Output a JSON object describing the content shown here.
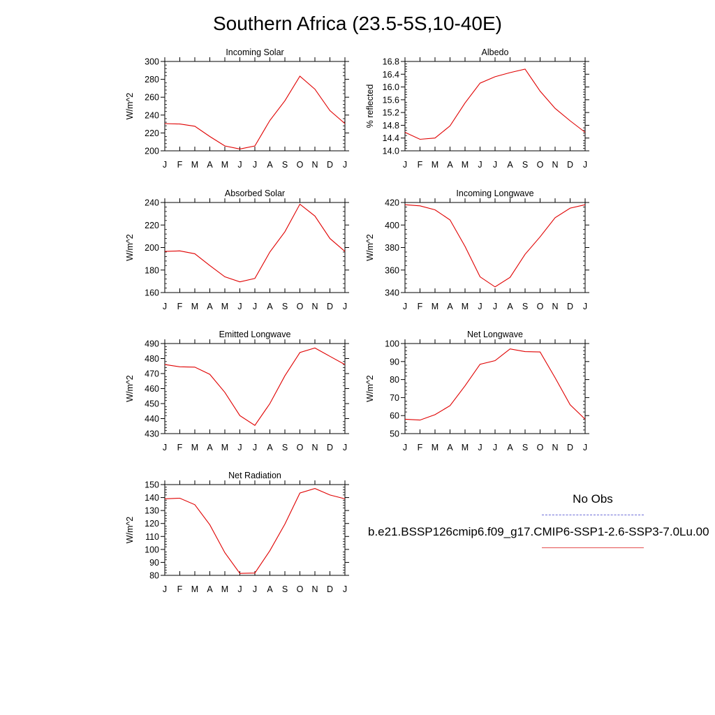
{
  "page": {
    "title": "Southern Africa (23.5-5S,10-40E)"
  },
  "legend": {
    "obs_label": "No Obs",
    "model_label": "b.e21.BSSP126cmip6.f09_g17.CMIP6-SSP1-2.6-SSP3-7.0Lu.00",
    "obs_color": "#6b6bd8",
    "model_color": "#e45050"
  },
  "colors": {
    "line": "#e00000",
    "axis": "#000000"
  },
  "chart_data": [
    {
      "type": "line",
      "title": "Incoming Solar",
      "ylabel": "W/m^2",
      "x": [
        "J",
        "F",
        "M",
        "A",
        "M",
        "J",
        "J",
        "A",
        "S",
        "O",
        "N",
        "D",
        "J"
      ],
      "series": [
        {
          "values": [
            230.5,
            230.0,
            227.5,
            216.0,
            205.5,
            202.0,
            205.5,
            234.0,
            256.0,
            283.5,
            269.0,
            245.0,
            230.5
          ]
        }
      ],
      "ylim": [
        200,
        300
      ],
      "yticks": [
        "200",
        "220",
        "240",
        "260",
        "280",
        "300"
      ],
      "ytick_values": [
        200,
        220,
        240,
        260,
        280,
        300
      ]
    },
    {
      "type": "line",
      "title": "Albedo",
      "ylabel": "% reflected",
      "x": [
        "J",
        "F",
        "M",
        "A",
        "M",
        "J",
        "J",
        "A",
        "S",
        "O",
        "N",
        "D",
        "J"
      ],
      "series": [
        {
          "values": [
            14.58,
            14.36,
            14.4,
            14.78,
            15.5,
            16.12,
            16.32,
            16.45,
            16.56,
            15.87,
            15.33,
            14.94,
            14.58
          ]
        }
      ],
      "ylim": [
        14.0,
        16.8
      ],
      "yticks": [
        "14.0",
        "14.4",
        "14.8",
        "15.2",
        "15.6",
        "16.0",
        "16.4",
        "16.8"
      ],
      "ytick_values": [
        14.0,
        14.4,
        14.8,
        15.2,
        15.6,
        16.0,
        16.4,
        16.8
      ]
    },
    {
      "type": "line",
      "title": "Absorbed Solar",
      "ylabel": "W/m^2",
      "x": [
        "J",
        "F",
        "M",
        "A",
        "M",
        "J",
        "J",
        "A",
        "S",
        "O",
        "N",
        "D",
        "J"
      ],
      "series": [
        {
          "values": [
            196.5,
            197.0,
            194.5,
            184.0,
            174.0,
            169.5,
            172.5,
            196.0,
            214.0,
            238.5,
            228.0,
            208.0,
            196.5
          ]
        }
      ],
      "ylim": [
        160,
        240
      ],
      "yticks": [
        "160",
        "180",
        "200",
        "220",
        "240"
      ],
      "ytick_values": [
        160,
        180,
        200,
        220,
        240
      ]
    },
    {
      "type": "line",
      "title": "Incoming Longwave",
      "ylabel": "W/m^2",
      "x": [
        "J",
        "F",
        "M",
        "A",
        "M",
        "J",
        "J",
        "A",
        "S",
        "O",
        "N",
        "D",
        "J"
      ],
      "series": [
        {
          "values": [
            418.0,
            417.0,
            413.5,
            404.5,
            381.0,
            354.0,
            345.0,
            353.5,
            374.0,
            389.5,
            406.5,
            415.0,
            418.0
          ]
        }
      ],
      "ylim": [
        340,
        420
      ],
      "yticks": [
        "340",
        "360",
        "380",
        "400",
        "420"
      ],
      "ytick_values": [
        340,
        360,
        380,
        400,
        420
      ]
    },
    {
      "type": "line",
      "title": "Emitted Longwave",
      "ylabel": "W/m^2",
      "x": [
        "J",
        "F",
        "M",
        "A",
        "M",
        "J",
        "J",
        "A",
        "S",
        "O",
        "N",
        "D",
        "J"
      ],
      "series": [
        {
          "values": [
            476.0,
            474.5,
            474.3,
            469.5,
            457.5,
            442.0,
            435.5,
            450.0,
            468.5,
            484.0,
            487.0,
            481.5,
            476.0
          ]
        }
      ],
      "ylim": [
        430,
        490
      ],
      "yticks": [
        "430",
        "440",
        "450",
        "460",
        "470",
        "480",
        "490"
      ],
      "ytick_values": [
        430,
        440,
        450,
        460,
        470,
        480,
        490
      ]
    },
    {
      "type": "line",
      "title": "Net Longwave",
      "ylabel": "W/m^2",
      "x": [
        "J",
        "F",
        "M",
        "A",
        "M",
        "J",
        "J",
        "A",
        "S",
        "O",
        "N",
        "D",
        "J"
      ],
      "series": [
        {
          "values": [
            58.0,
            57.5,
            60.5,
            65.5,
            76.5,
            88.5,
            90.5,
            97.0,
            95.5,
            95.3,
            81.0,
            66.0,
            58.0
          ]
        }
      ],
      "ylim": [
        50,
        100
      ],
      "yticks": [
        "50",
        "60",
        "70",
        "80",
        "90",
        "100"
      ],
      "ytick_values": [
        50,
        60,
        70,
        80,
        90,
        100
      ]
    },
    {
      "type": "line",
      "title": "Net Radiation",
      "ylabel": "W/m^2",
      "x": [
        "J",
        "F",
        "M",
        "A",
        "M",
        "J",
        "J",
        "A",
        "S",
        "O",
        "N",
        "D",
        "J"
      ],
      "series": [
        {
          "values": [
            139.0,
            139.5,
            134.5,
            119.0,
            97.5,
            81.5,
            81.8,
            99.0,
            119.5,
            143.5,
            147.0,
            142.0,
            139.0
          ]
        }
      ],
      "ylim": [
        80,
        150
      ],
      "yticks": [
        "80",
        "90",
        "100",
        "110",
        "120",
        "130",
        "140",
        "150"
      ],
      "ytick_values": [
        80,
        90,
        100,
        110,
        120,
        130,
        140,
        150
      ]
    }
  ]
}
